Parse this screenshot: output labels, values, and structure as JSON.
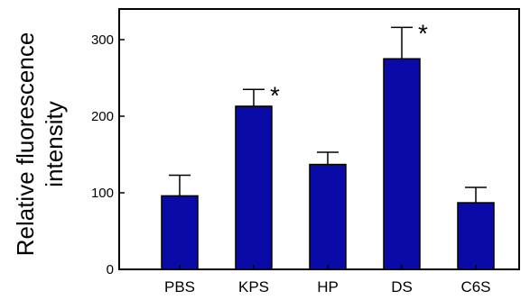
{
  "chart_data": {
    "type": "bar",
    "title": "",
    "xlabel": "",
    "ylabel": "Relative fluorescence intensity",
    "ylabel_lines": [
      "Relative fluorescence",
      "intensity"
    ],
    "categories": [
      "PBS",
      "KPS",
      "HP",
      "DS",
      "C6S"
    ],
    "values": [
      96,
      213,
      137,
      275,
      87
    ],
    "errors": [
      27,
      22,
      16,
      41,
      20
    ],
    "annotations": [
      "",
      "*",
      "",
      "*",
      ""
    ],
    "yticks": [
      0,
      100,
      200,
      300
    ],
    "ylim": [
      0,
      340
    ],
    "bar_color": "#0a0aa6",
    "grid": false,
    "legend": "none"
  }
}
